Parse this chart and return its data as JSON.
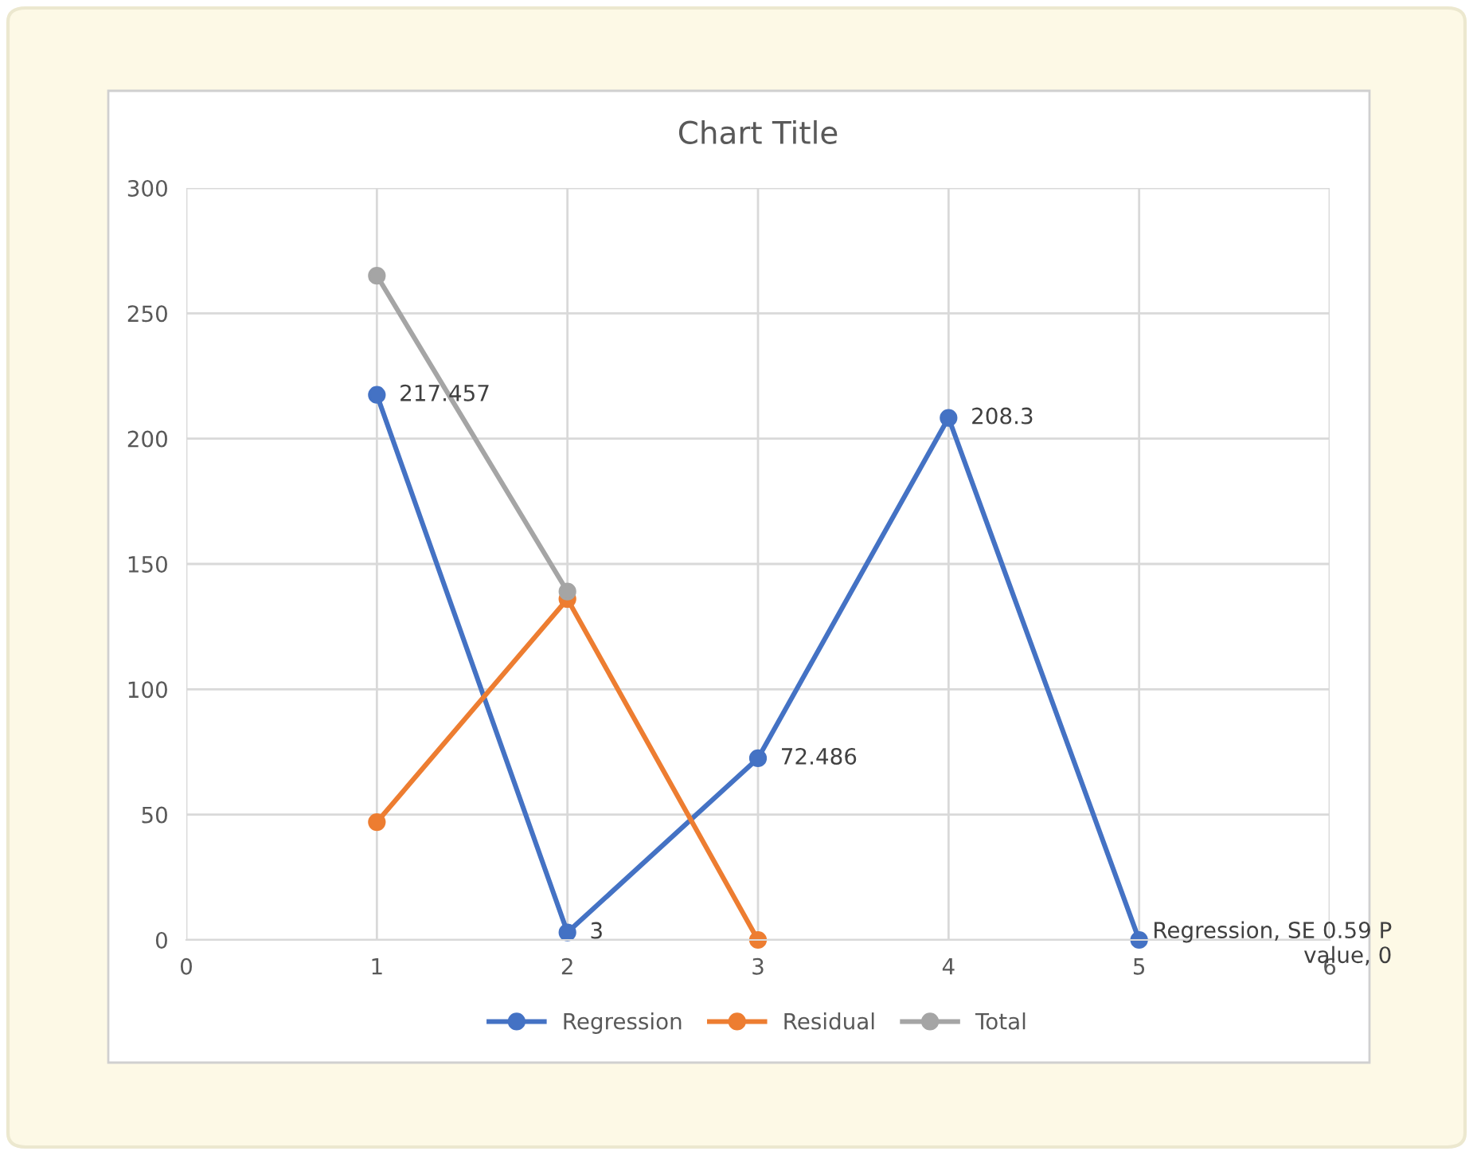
{
  "chart_data": {
    "type": "line",
    "title": "Chart Title",
    "xlim": [
      0,
      6
    ],
    "xticks": [
      0,
      1,
      2,
      3,
      4,
      5,
      6
    ],
    "ylim": [
      0,
      300
    ],
    "yticks": [
      0,
      50,
      100,
      150,
      200,
      250,
      300
    ],
    "grid": true,
    "legend": "bottom",
    "marker": "circle",
    "line_style": "solid",
    "series": [
      {
        "name": "Regression",
        "color": "#4472c4",
        "x": [
          1,
          2,
          3,
          4,
          5
        ],
        "values": [
          217.457,
          3,
          72.486,
          208.3,
          0
        ],
        "value_labels": [
          "217.457",
          "3",
          "72.486",
          "208.3",
          "Regression, SE 0.59 P value, 0"
        ]
      },
      {
        "name": "Residual",
        "color": "#ed7d31",
        "x": [
          1,
          2,
          3
        ],
        "values": [
          47,
          136,
          0
        ]
      },
      {
        "name": "Total",
        "color": "#a5a5a5",
        "x": [
          1,
          2
        ],
        "values": [
          265,
          139
        ]
      }
    ]
  }
}
